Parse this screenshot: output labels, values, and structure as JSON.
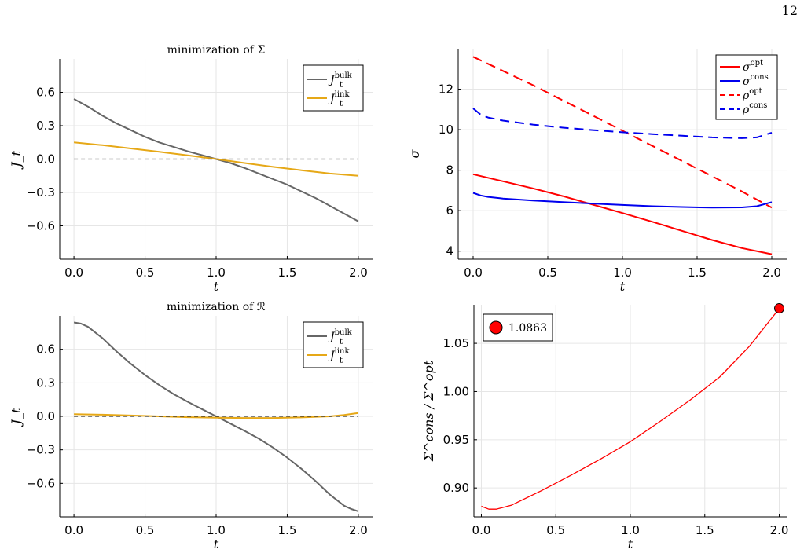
{
  "page_number": "12",
  "chart_data": [
    {
      "id": "p1",
      "type": "line",
      "title": "minimization of Σ",
      "xlabel": "t",
      "ylabel": "J_t",
      "xlim": [
        -0.1,
        2.1
      ],
      "ylim": [
        -0.9,
        0.9
      ],
      "xticks": [
        0.0,
        0.5,
        1.0,
        1.5,
        2.0
      ],
      "xticklabels": [
        "0.0",
        "0.5",
        "1.0",
        "1.5",
        "2.0"
      ],
      "yticks": [
        -0.6,
        -0.3,
        0.0,
        0.3,
        0.6
      ],
      "yticklabels": [
        "−0.6",
        "−0.3",
        "0.0",
        "0.3",
        "0.6"
      ],
      "grid": true,
      "legend_position": "top-right",
      "series": [
        {
          "name": "J_t^bulk",
          "sym": "J",
          "sup": "bulk",
          "sub": "t",
          "color": "#666666",
          "dash": "solid",
          "x": [
            0,
            0.1,
            0.2,
            0.3,
            0.4,
            0.5,
            0.6,
            0.7,
            0.8,
            0.9,
            1.0,
            1.1,
            1.2,
            1.3,
            1.4,
            1.5,
            1.6,
            1.7,
            1.8,
            1.9,
            2.0
          ],
          "y": [
            0.54,
            0.47,
            0.39,
            0.32,
            0.26,
            0.2,
            0.15,
            0.11,
            0.07,
            0.035,
            0.0,
            -0.035,
            -0.08,
            -0.13,
            -0.18,
            -0.23,
            -0.29,
            -0.35,
            -0.42,
            -0.49,
            -0.56
          ]
        },
        {
          "name": "J_t^link",
          "sym": "J",
          "sup": "link",
          "sub": "t",
          "color": "#e6a817",
          "dash": "solid",
          "x": [
            0,
            0.2,
            0.4,
            0.6,
            0.8,
            1.0,
            1.2,
            1.4,
            1.6,
            1.8,
            2.0
          ],
          "y": [
            0.15,
            0.125,
            0.095,
            0.065,
            0.033,
            0.0,
            -0.035,
            -0.07,
            -0.1,
            -0.13,
            -0.15
          ]
        },
        {
          "name": "",
          "color": "#333333",
          "dash": "dashed",
          "x": [
            0,
            2.0
          ],
          "y": [
            0,
            0
          ]
        }
      ]
    },
    {
      "id": "p2",
      "type": "line",
      "title": "",
      "xlabel": "t",
      "ylabel": "σ",
      "xlim": [
        -0.1,
        2.1
      ],
      "ylim": [
        3.6,
        14.0
      ],
      "xticks": [
        0.0,
        0.5,
        1.0,
        1.5,
        2.0
      ],
      "xticklabels": [
        "0.0",
        "0.5",
        "1.0",
        "1.5",
        "2.0"
      ],
      "yticks": [
        4,
        6,
        8,
        10,
        12
      ],
      "yticklabels": [
        "4",
        "6",
        "8",
        "10",
        "12"
      ],
      "grid": true,
      "legend_position": "top-right",
      "series": [
        {
          "name": "σ^opt",
          "sym": "σ",
          "sup": "opt",
          "sub": "",
          "color": "#ff0000",
          "dash": "solid",
          "x": [
            0,
            0.2,
            0.4,
            0.6,
            0.8,
            1.0,
            1.2,
            1.4,
            1.6,
            1.8,
            2.0
          ],
          "y": [
            7.8,
            7.45,
            7.1,
            6.72,
            6.3,
            5.88,
            5.45,
            5.0,
            4.55,
            4.15,
            3.85
          ]
        },
        {
          "name": "σ^cons",
          "sym": "σ",
          "sup": "cons",
          "sub": "",
          "color": "#0000ee",
          "dash": "solid",
          "x": [
            0,
            0.05,
            0.1,
            0.2,
            0.4,
            0.6,
            0.8,
            1.0,
            1.2,
            1.4,
            1.6,
            1.8,
            1.9,
            2.0
          ],
          "y": [
            6.88,
            6.75,
            6.68,
            6.6,
            6.5,
            6.42,
            6.35,
            6.28,
            6.22,
            6.18,
            6.15,
            6.16,
            6.22,
            6.42
          ]
        },
        {
          "name": "ρ^opt",
          "sym": "ρ",
          "sup": "opt",
          "sub": "",
          "color": "#ff0000",
          "dash": "dashed",
          "x": [
            0,
            0.2,
            0.4,
            0.6,
            0.8,
            1.0,
            1.2,
            1.4,
            1.6,
            1.8,
            2.0
          ],
          "y": [
            13.6,
            12.9,
            12.2,
            11.45,
            10.7,
            9.95,
            9.2,
            8.45,
            7.7,
            6.95,
            6.15
          ]
        },
        {
          "name": "ρ^cons",
          "sym": "ρ",
          "sup": "cons",
          "sub": "",
          "color": "#0000ee",
          "dash": "dashed",
          "x": [
            0,
            0.05,
            0.1,
            0.2,
            0.4,
            0.6,
            0.8,
            1.0,
            1.2,
            1.4,
            1.6,
            1.8,
            1.9,
            2.0
          ],
          "y": [
            11.05,
            10.75,
            10.6,
            10.45,
            10.25,
            10.1,
            9.98,
            9.87,
            9.78,
            9.7,
            9.62,
            9.58,
            9.62,
            9.85
          ]
        }
      ]
    },
    {
      "id": "p3",
      "type": "line",
      "title": "minimization of ℛ",
      "xlabel": "t",
      "ylabel": "J_t",
      "xlim": [
        -0.1,
        2.1
      ],
      "ylim": [
        -0.9,
        0.9
      ],
      "xticks": [
        0.0,
        0.5,
        1.0,
        1.5,
        2.0
      ],
      "xticklabels": [
        "0.0",
        "0.5",
        "1.0",
        "1.5",
        "2.0"
      ],
      "yticks": [
        -0.6,
        -0.3,
        0.0,
        0.3,
        0.6
      ],
      "yticklabels": [
        "−0.6",
        "−0.3",
        "0.0",
        "0.3",
        "0.6"
      ],
      "grid": true,
      "legend_position": "top-right",
      "series": [
        {
          "name": "J_t^bulk",
          "sym": "J",
          "sup": "bulk",
          "sub": "t",
          "color": "#666666",
          "dash": "solid",
          "x": [
            0,
            0.05,
            0.1,
            0.2,
            0.3,
            0.4,
            0.5,
            0.6,
            0.7,
            0.8,
            0.9,
            1.0,
            1.1,
            1.2,
            1.3,
            1.4,
            1.5,
            1.6,
            1.7,
            1.8,
            1.9,
            1.95,
            2.0
          ],
          "y": [
            0.84,
            0.83,
            0.8,
            0.7,
            0.58,
            0.47,
            0.37,
            0.28,
            0.2,
            0.13,
            0.065,
            0.0,
            -0.065,
            -0.13,
            -0.2,
            -0.28,
            -0.37,
            -0.47,
            -0.58,
            -0.7,
            -0.8,
            -0.83,
            -0.85
          ]
        },
        {
          "name": "J_t^link",
          "sym": "J",
          "sup": "link",
          "sub": "t",
          "color": "#e6a817",
          "dash": "solid",
          "x": [
            0,
            0.2,
            0.4,
            0.6,
            0.8,
            1.0,
            1.2,
            1.4,
            1.6,
            1.8,
            1.9,
            2.0
          ],
          "y": [
            0.02,
            0.015,
            0.008,
            0.0,
            -0.008,
            -0.012,
            -0.015,
            -0.015,
            -0.01,
            0.0,
            0.012,
            0.03
          ]
        },
        {
          "name": "",
          "color": "#333333",
          "dash": "dashed",
          "x": [
            0,
            2.0
          ],
          "y": [
            0,
            0
          ]
        }
      ]
    },
    {
      "id": "p4",
      "type": "line",
      "title": "",
      "xlabel": "t",
      "ylabel": "Σ^cons / Σ^opt",
      "xlim": [
        -0.05,
        2.05
      ],
      "ylim": [
        0.87,
        1.09
      ],
      "xticks": [
        0.0,
        0.5,
        1.0,
        1.5,
        2.0
      ],
      "xticklabels": [
        "0.0",
        "0.5",
        "1.0",
        "1.5",
        "2.0"
      ],
      "yticks": [
        0.9,
        0.95,
        1.0,
        1.05
      ],
      "yticklabels": [
        "0.90",
        "0.95",
        "1.00",
        "1.05"
      ],
      "grid": true,
      "legend_position": "top-left",
      "series": [
        {
          "name": "",
          "color": "#ff0000",
          "dash": "solid",
          "x": [
            0,
            0.05,
            0.1,
            0.2,
            0.4,
            0.6,
            0.8,
            1.0,
            1.2,
            1.4,
            1.6,
            1.8,
            2.0
          ],
          "y": [
            0.881,
            0.878,
            0.878,
            0.882,
            0.897,
            0.913,
            0.93,
            0.948,
            0.969,
            0.991,
            1.015,
            1.047,
            1.086
          ]
        }
      ],
      "marker": {
        "x": 2.0,
        "y": 1.0863,
        "label": "1.0863",
        "color": "#ff0000"
      }
    }
  ]
}
